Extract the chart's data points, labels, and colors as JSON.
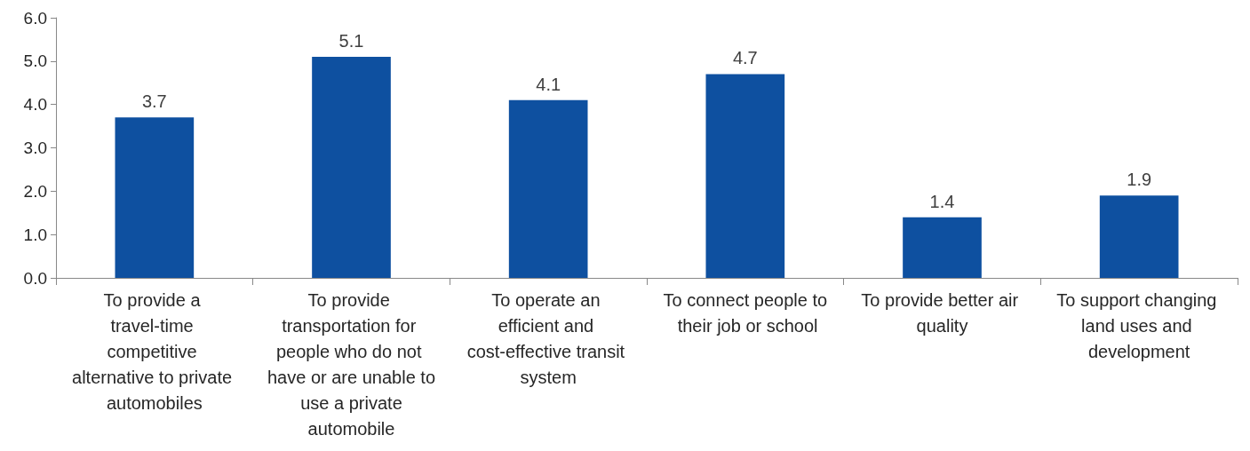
{
  "chart_data": {
    "type": "bar",
    "categories": [
      "To provide a travel-time competitive alternative to private automobiles",
      "To provide transportation for people who do not have or are unable to use a private automobile",
      "To operate an efficient and cost-effective transit system",
      "To connect people to their job or school",
      "To provide better air quality",
      "To support changing land uses and development"
    ],
    "values": [
      3.7,
      5.1,
      4.1,
      4.7,
      1.4,
      1.9
    ],
    "color": "#0e50a0",
    "ylim": [
      0,
      6
    ],
    "yticks": [
      {
        "value": 0,
        "label": "0.0"
      },
      {
        "value": 1,
        "label": "1.0"
      },
      {
        "value": 2,
        "label": "2.0"
      },
      {
        "value": 3,
        "label": "3.0"
      },
      {
        "value": 4,
        "label": "4.0"
      },
      {
        "value": 5,
        "label": "5.0"
      },
      {
        "value": 6,
        "label": "6.0"
      }
    ],
    "data_labels": true
  }
}
